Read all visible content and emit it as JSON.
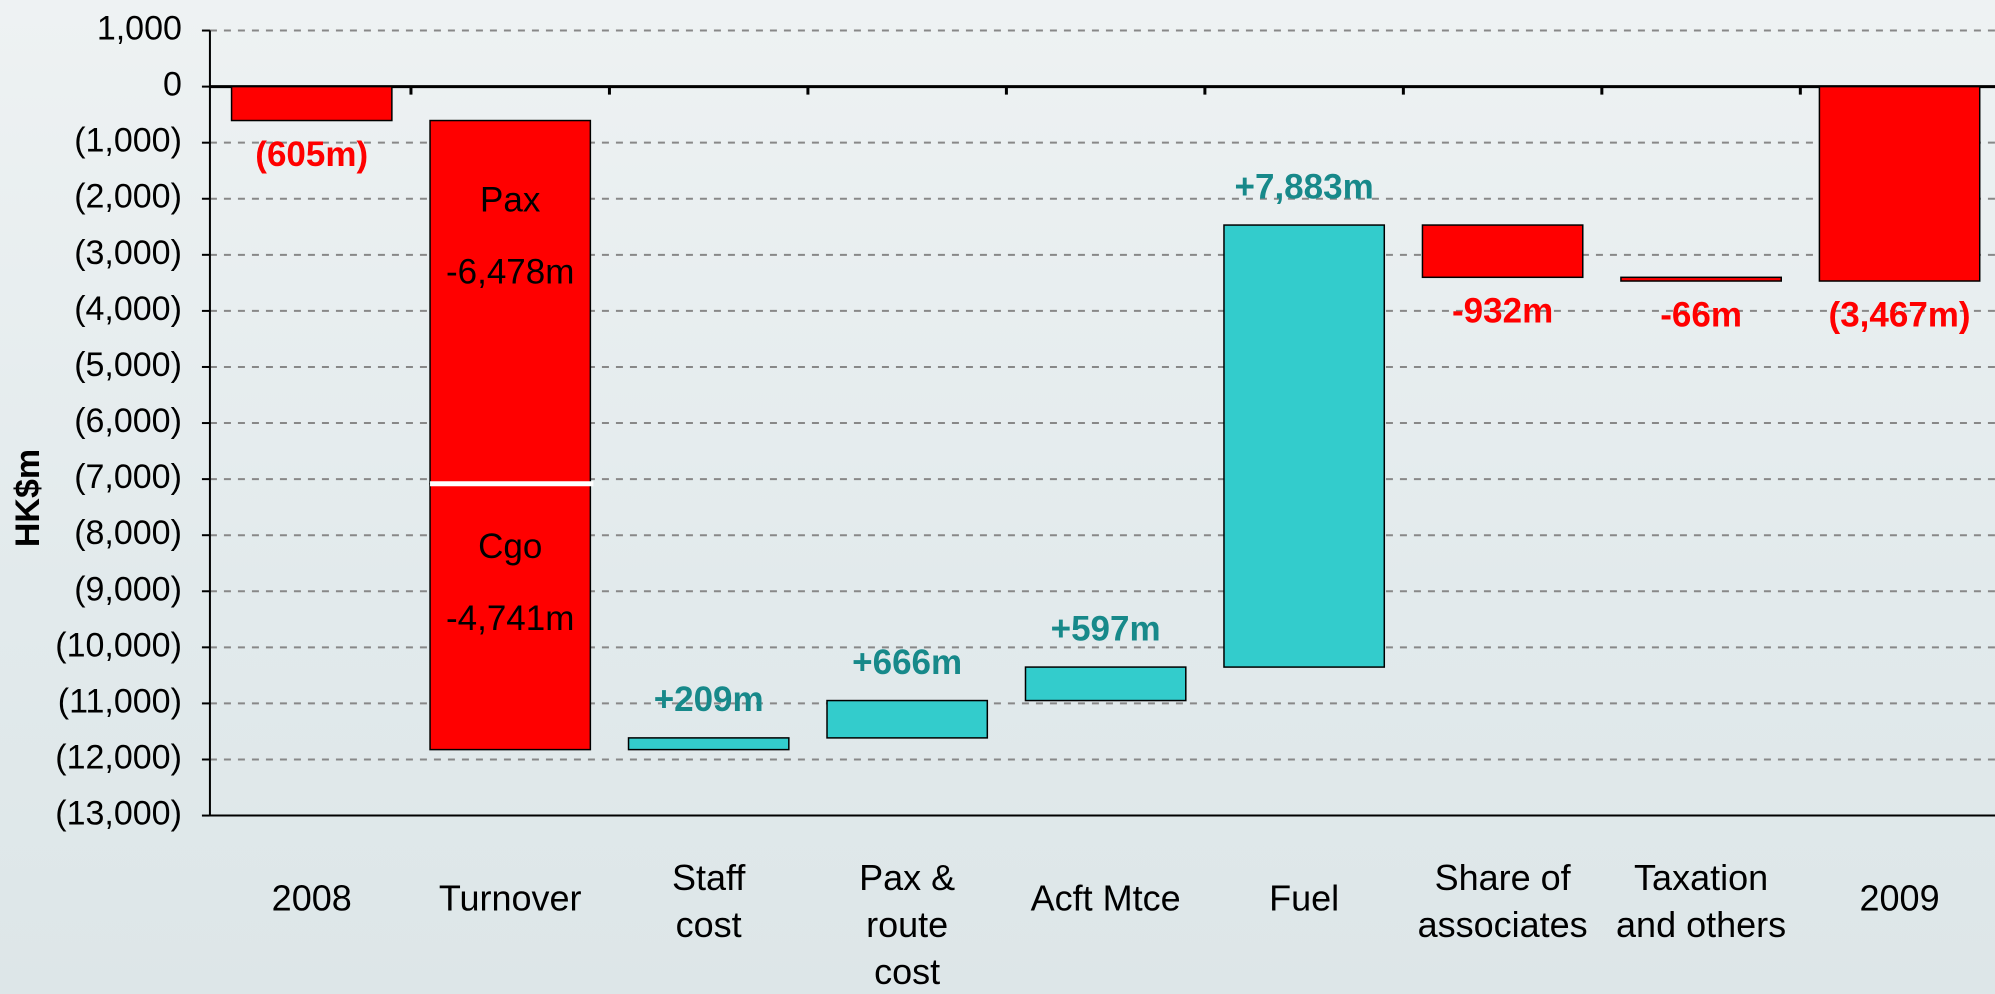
{
  "chart_data": {
    "type": "waterfall",
    "y_label": "HK$m",
    "ylim": [
      -13000,
      1000
    ],
    "yticks": [
      {
        "value": 1000,
        "label": "1,000"
      },
      0,
      {
        "value": -1000,
        "label": "(1,000)"
      },
      {
        "value": -2000,
        "label": "(2,000)"
      },
      {
        "value": -3000,
        "label": "(3,000)"
      },
      {
        "value": -4000,
        "label": "(4,000)"
      },
      {
        "value": -5000,
        "label": "(5,000)"
      },
      {
        "value": -6000,
        "label": "(6,000)"
      },
      {
        "value": -7000,
        "label": "(7,000)"
      },
      {
        "value": -8000,
        "label": "(8,000)"
      },
      {
        "value": -9000,
        "label": "(9,000)"
      },
      {
        "value": -10000,
        "label": "(10,000)"
      },
      {
        "value": -11000,
        "label": "(11,000)"
      },
      {
        "value": -12000,
        "label": "(12,000)"
      },
      {
        "value": -13000,
        "label": "(13,000)"
      }
    ],
    "grid": true,
    "colors": {
      "negative": "#ff0000",
      "positive": "#33cccc",
      "negative_label": "#ff0000",
      "positive_label": "#17898a"
    },
    "bars": [
      {
        "category": [
          "2008"
        ],
        "total": true,
        "segments": [
          {
            "value": -605,
            "value_label": "(605m)"
          }
        ]
      },
      {
        "category": [
          "Turnover"
        ],
        "total": false,
        "segments": [
          {
            "name": "Pax",
            "value": -6478,
            "value_label": "-6,478m"
          },
          {
            "name": "Cgo",
            "value": -4741,
            "value_label": "-4,741m"
          }
        ]
      },
      {
        "category": [
          "Staff",
          "cost"
        ],
        "total": false,
        "segments": [
          {
            "value": 209,
            "value_label": "+209m"
          }
        ]
      },
      {
        "category": [
          "Pax &",
          "route",
          "cost"
        ],
        "total": false,
        "segments": [
          {
            "value": 666,
            "value_label": "+666m"
          }
        ]
      },
      {
        "category": [
          "Acft Mtce"
        ],
        "total": false,
        "segments": [
          {
            "value": 597,
            "value_label": "+597m"
          }
        ]
      },
      {
        "category": [
          "Fuel"
        ],
        "total": false,
        "segments": [
          {
            "value": 7883,
            "value_label": "+7,883m"
          }
        ]
      },
      {
        "category": [
          "Share of",
          "associates"
        ],
        "total": false,
        "segments": [
          {
            "value": -932,
            "value_label": "-932m"
          }
        ]
      },
      {
        "category": [
          "Taxation",
          "and others"
        ],
        "total": false,
        "segments": [
          {
            "value": -66,
            "value_label": "-66m"
          }
        ]
      },
      {
        "category": [
          "2009"
        ],
        "total": true,
        "segments": [
          {
            "value": -3467,
            "value_label": "(3,467m)"
          }
        ]
      }
    ]
  }
}
